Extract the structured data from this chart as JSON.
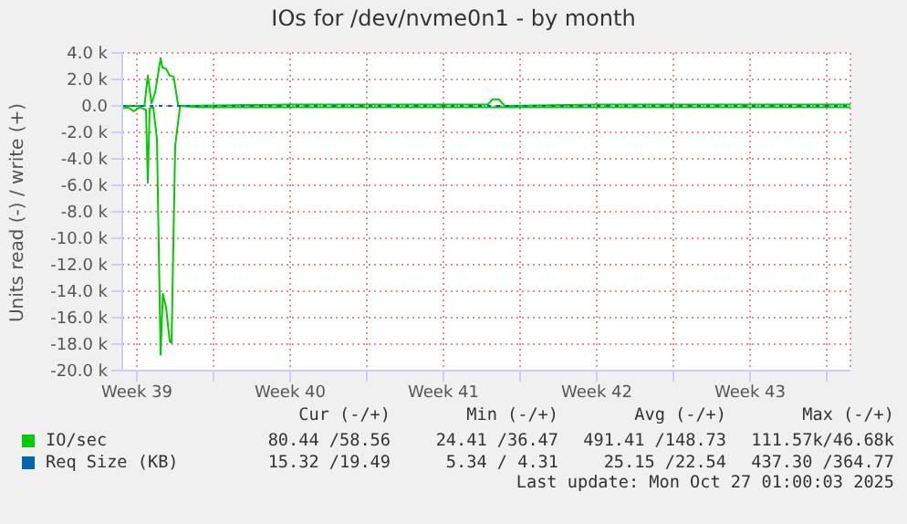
{
  "chart_data": {
    "type": "line",
    "title": "IOs for /dev/nvme0n1 - by month",
    "ylabel": "Units read (-) / write (+)",
    "xlim": [
      "2025-09-24T20:00",
      "2025-10-28T02:00"
    ],
    "xticks": [
      {
        "value": "2025-09-25T12:00",
        "label": "Week 39"
      },
      {
        "value": "2025-09-29",
        "label": null
      },
      {
        "value": "2025-10-02T12:00",
        "label": "Week 40"
      },
      {
        "value": "2025-10-06",
        "label": null
      },
      {
        "value": "2025-10-09T12:00",
        "label": "Week 41"
      },
      {
        "value": "2025-10-13",
        "label": null
      },
      {
        "value": "2025-10-16T12:00",
        "label": "Week 42"
      },
      {
        "value": "2025-10-20",
        "label": null
      },
      {
        "value": "2025-10-23T12:00",
        "label": "Week 43"
      },
      {
        "value": "2025-10-27",
        "label": null
      }
    ],
    "ylim": [
      -20000,
      4000
    ],
    "yticks": [
      {
        "value": 4000,
        "label": "4.0 k"
      },
      {
        "value": 2000,
        "label": "2.0 k"
      },
      {
        "value": 0,
        "label": "0.0"
      },
      {
        "value": -2000,
        "label": "-2.0 k"
      },
      {
        "value": -4000,
        "label": "-4.0 k"
      },
      {
        "value": -6000,
        "label": "-6.0 k"
      },
      {
        "value": -8000,
        "label": "-8.0 k"
      },
      {
        "value": -10000,
        "label": "-10.0 k"
      },
      {
        "value": -12000,
        "label": "-12.0 k"
      },
      {
        "value": -14000,
        "label": "-14.0 k"
      },
      {
        "value": -16000,
        "label": "-16.0 k"
      },
      {
        "value": -18000,
        "label": "-18.0 k"
      },
      {
        "value": -20000,
        "label": "-20.0 k"
      }
    ],
    "grid": true,
    "legend": "bottom",
    "marker": "none",
    "line_style": "solid",
    "series": [
      {
        "color": "#00cc00",
        "x": [
          "2025-09-24T20:00",
          "2025-09-25T02:00",
          "2025-09-25T08:40",
          "2025-09-25T15:20",
          "2025-09-25T22:00",
          "2025-09-26T00:00",
          "2025-09-26T02:00",
          "2025-09-26T06:00",
          "2025-09-26T10:00",
          "2025-09-26T14:00",
          "2025-09-26T16:30",
          "2025-09-26T20:00",
          "2025-09-27T00:00",
          "2025-09-27T02:00",
          "2025-09-27T06:00",
          "2025-09-27T11:20",
          "2025-09-28T07:00",
          "2025-10-02T12:00",
          "2025-10-06",
          "2025-10-09T12:00",
          "2025-10-13",
          "2025-10-16T12:00",
          "2025-10-20",
          "2025-10-23T12:00",
          "2025-10-27",
          "2025-10-28T02:00"
        ],
        "values": [
          -200,
          -100,
          -400,
          -100,
          -300,
          -5800,
          -200,
          -100,
          -2500,
          -18800,
          -14200,
          -15200,
          -17800,
          -17900,
          -3000,
          0,
          -100,
          -100,
          -100,
          -100,
          -100,
          -100,
          -100,
          -100,
          -100,
          -100
        ]
      },
      {
        "name": "IO/sec",
        "color": "#00cc00",
        "x": [
          "2025-09-24T20:00",
          "2025-09-25T20:20",
          "2025-09-26T00:00",
          "2025-09-26T04:00",
          "2025-09-26T08:00",
          "2025-09-26T14:00",
          "2025-09-26T16:00",
          "2025-09-26T20:00",
          "2025-09-27T00:00",
          "2025-09-27T04:20",
          "2025-09-27T09:20",
          "2025-10-02T12:00",
          "2025-10-09T12:00",
          "2025-10-11T12:40",
          "2025-10-11T17:50",
          "2025-10-12T00:30",
          "2025-10-12T07:10",
          "2025-10-16T12:00",
          "2025-10-23T12:00",
          "2025-10-28T02:00"
        ],
        "values": [
          0,
          0,
          2300,
          200,
          1000,
          3600,
          2900,
          2800,
          2300,
          2200,
          0,
          100,
          100,
          100,
          500,
          500,
          0,
          100,
          100,
          100
        ]
      },
      {
        "name": "Req Size (KB)",
        "color": "#0066b3",
        "line_style": "dotted",
        "x": [
          "2025-09-24T20:00",
          "2025-10-28T02:00"
        ],
        "values": [
          0,
          0
        ]
      }
    ],
    "annotations": [
      "Cur (-/+)",
      "Min (-/+)",
      "Avg (-/+)",
      "Max (-/+)",
      "80.44 /58.56",
      "24.41 /36.47",
      "491.41 /148.73",
      "111.57k/46.68k",
      "15.32 /19.49",
      "5.34 / 4.31",
      "25.15 /22.54",
      "437.30 /364.77",
      "Last update: Mon Oct 27 01:00:03 2025"
    ]
  }
}
